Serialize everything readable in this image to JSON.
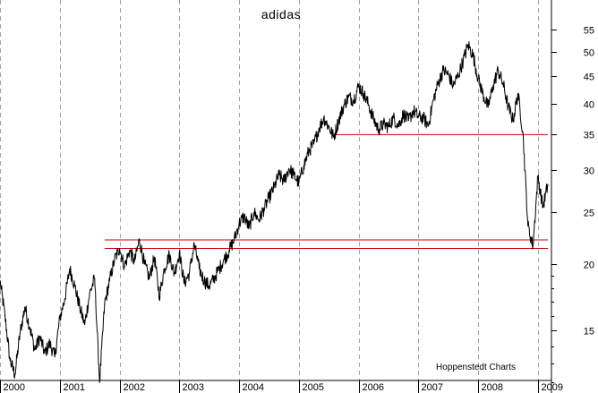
{
  "chart_data": {
    "type": "line",
    "title": "adidas",
    "credit": "Hoppenstedt Charts",
    "xlabel": "",
    "ylabel": "",
    "y_scale": "log",
    "ylim": [
      11.5,
      60
    ],
    "xlim": [
      "2000-01",
      "2009-03"
    ],
    "grid": "vertical dashed lines at year boundaries",
    "x_tick_labels": [
      "2000",
      "2001",
      "2002",
      "2003",
      "2004",
      "2005",
      "2006",
      "2007",
      "2008",
      "2009"
    ],
    "y_tick_labels": [
      {
        "value": 55,
        "label": "55"
      },
      {
        "value": 50,
        "label": "50"
      },
      {
        "value": 45,
        "label": "45"
      },
      {
        "value": 40,
        "label": "40"
      },
      {
        "value": 35,
        "label": "35"
      },
      {
        "value": 30,
        "label": "30"
      },
      {
        "value": 25,
        "label": "25"
      },
      {
        "value": 20,
        "label": "20"
      },
      {
        "value": 15,
        "label": "15"
      }
    ],
    "horizontal_lines": [
      {
        "value": 35.0,
        "from": "2005-08",
        "to": "2009-03",
        "color": "#cc0000"
      },
      {
        "value": 22.2,
        "from": "2001-10",
        "to": "2009-03",
        "color": "#cc0000"
      },
      {
        "value": 21.4,
        "from": "2001-10",
        "to": "2009-03",
        "color": "#cc0000"
      }
    ],
    "series": [
      {
        "color": "#000000",
        "points": [
          [
            "2000-01",
            18.6
          ],
          [
            "2000-02",
            16.0
          ],
          [
            "2000-03",
            13.2
          ],
          [
            "2000-04",
            12.4
          ],
          [
            "2000-05",
            14.8
          ],
          [
            "2000-06",
            16.6
          ],
          [
            "2000-07",
            15.2
          ],
          [
            "2000-08",
            13.8
          ],
          [
            "2000-09",
            14.6
          ],
          [
            "2000-10",
            13.6
          ],
          [
            "2000-11",
            14.2
          ],
          [
            "2000-12",
            13.4
          ],
          [
            "2001-01",
            15.8
          ],
          [
            "2001-02",
            17.2
          ],
          [
            "2001-03",
            19.6
          ],
          [
            "2001-04",
            18.2
          ],
          [
            "2001-05",
            16.6
          ],
          [
            "2001-06",
            15.4
          ],
          [
            "2001-07",
            17.6
          ],
          [
            "2001-08",
            18.8
          ],
          [
            "2001-09",
            12.0
          ],
          [
            "2001-10",
            16.8
          ],
          [
            "2001-11",
            18.6
          ],
          [
            "2001-12",
            20.4
          ],
          [
            "2002-01",
            21.4
          ],
          [
            "2002-02",
            19.8
          ],
          [
            "2002-03",
            21.2
          ],
          [
            "2002-04",
            20.2
          ],
          [
            "2002-05",
            22.2
          ],
          [
            "2002-06",
            20.0
          ],
          [
            "2002-07",
            18.8
          ],
          [
            "2002-08",
            20.6
          ],
          [
            "2002-09",
            17.4
          ],
          [
            "2002-10",
            19.6
          ],
          [
            "2002-11",
            20.8
          ],
          [
            "2002-12",
            19.2
          ],
          [
            "2003-01",
            21.0
          ],
          [
            "2003-02",
            18.4
          ],
          [
            "2003-03",
            19.2
          ],
          [
            "2003-04",
            21.8
          ],
          [
            "2003-05",
            19.6
          ],
          [
            "2003-06",
            18.6
          ],
          [
            "2003-07",
            18.2
          ],
          [
            "2003-08",
            18.8
          ],
          [
            "2003-09",
            19.6
          ],
          [
            "2003-10",
            20.4
          ],
          [
            "2003-11",
            21.2
          ],
          [
            "2003-12",
            22.2
          ],
          [
            "2004-01",
            23.8
          ],
          [
            "2004-02",
            24.6
          ],
          [
            "2004-03",
            23.4
          ],
          [
            "2004-04",
            25.0
          ],
          [
            "2004-05",
            24.2
          ],
          [
            "2004-06",
            25.4
          ],
          [
            "2004-07",
            26.6
          ],
          [
            "2004-08",
            27.8
          ],
          [
            "2004-09",
            29.4
          ],
          [
            "2004-10",
            28.6
          ],
          [
            "2004-11",
            30.2
          ],
          [
            "2004-12",
            29.4
          ],
          [
            "2005-01",
            28.4
          ],
          [
            "2005-02",
            30.6
          ],
          [
            "2005-03",
            32.6
          ],
          [
            "2005-04",
            33.6
          ],
          [
            "2005-05",
            35.8
          ],
          [
            "2005-06",
            37.6
          ],
          [
            "2005-07",
            36.2
          ],
          [
            "2005-08",
            34.6
          ],
          [
            "2005-09",
            37.2
          ],
          [
            "2005-10",
            39.6
          ],
          [
            "2005-11",
            41.2
          ],
          [
            "2005-12",
            40.6
          ],
          [
            "2006-01",
            43.2
          ],
          [
            "2006-02",
            41.8
          ],
          [
            "2006-03",
            39.8
          ],
          [
            "2006-04",
            37.4
          ],
          [
            "2006-05",
            35.8
          ],
          [
            "2006-06",
            36.6
          ],
          [
            "2006-07",
            36.2
          ],
          [
            "2006-08",
            37.6
          ],
          [
            "2006-09",
            36.4
          ],
          [
            "2006-10",
            38.2
          ],
          [
            "2006-11",
            37.2
          ],
          [
            "2006-12",
            38.8
          ],
          [
            "2007-01",
            37.8
          ],
          [
            "2007-02",
            37.6
          ],
          [
            "2007-03",
            36.4
          ],
          [
            "2007-04",
            40.6
          ],
          [
            "2007-05",
            43.8
          ],
          [
            "2007-06",
            46.2
          ],
          [
            "2007-07",
            45.4
          ],
          [
            "2007-08",
            43.2
          ],
          [
            "2007-09",
            45.2
          ],
          [
            "2007-10",
            48.2
          ],
          [
            "2007-11",
            51.6
          ],
          [
            "2007-12",
            49.2
          ],
          [
            "2008-01",
            44.6
          ],
          [
            "2008-02",
            41.6
          ],
          [
            "2008-03",
            39.4
          ],
          [
            "2008-04",
            43.2
          ],
          [
            "2008-05",
            46.2
          ],
          [
            "2008-06",
            43.6
          ],
          [
            "2008-07",
            39.6
          ],
          [
            "2008-08",
            37.2
          ],
          [
            "2008-09",
            41.8
          ],
          [
            "2008-10",
            35.2
          ],
          [
            "2008-11",
            23.6
          ],
          [
            "2008-12",
            21.6
          ],
          [
            "2009-01",
            29.2
          ],
          [
            "2009-02",
            25.6
          ],
          [
            "2009-03",
            28.2
          ]
        ]
      }
    ]
  }
}
